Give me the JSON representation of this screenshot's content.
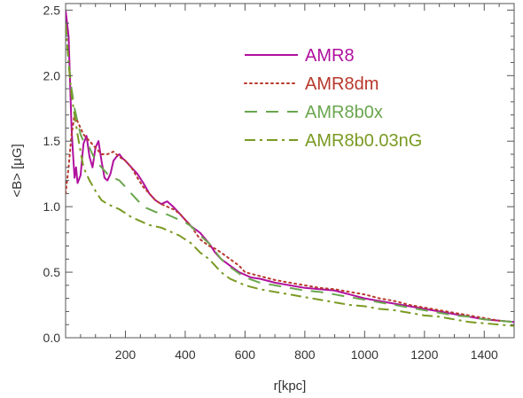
{
  "chart_data": {
    "type": "line",
    "title": "",
    "xlabel": "r[kpc]",
    "ylabel": "<B> [μG]",
    "xlim": [
      0,
      1500
    ],
    "ylim": [
      0,
      2.55
    ],
    "xticks": [
      200,
      400,
      600,
      800,
      1000,
      1200,
      1400
    ],
    "xtick_labels": [
      "200",
      "400",
      "600",
      "800",
      "1000",
      "1200",
      "1400"
    ],
    "yticks": [
      0.0,
      0.5,
      1.0,
      1.5,
      2.0,
      2.5
    ],
    "ytick_labels": [
      "0.0",
      "0.5",
      "1.0",
      "1.5",
      "2.0",
      "2.5"
    ],
    "grid": false,
    "legend_position": "top-right",
    "series": [
      {
        "name": "AMR8",
        "color": "#b0109e",
        "dash": "solid",
        "x": [
          0,
          10,
          20,
          25,
          30,
          35,
          40,
          50,
          60,
          70,
          80,
          90,
          100,
          110,
          120,
          130,
          140,
          150,
          160,
          170,
          180,
          190,
          200,
          220,
          240,
          260,
          280,
          300,
          320,
          340,
          360,
          380,
          400,
          420,
          450,
          480,
          500,
          520,
          550,
          580,
          600,
          620,
          650,
          700,
          750,
          800,
          850,
          900,
          950,
          1000,
          1050,
          1100,
          1150,
          1200,
          1250,
          1300,
          1350,
          1400,
          1450,
          1500
        ],
        "y": [
          2.5,
          2.3,
          1.6,
          1.4,
          1.22,
          1.3,
          1.18,
          1.24,
          1.48,
          1.54,
          1.38,
          1.3,
          1.45,
          1.5,
          1.35,
          1.22,
          1.2,
          1.25,
          1.35,
          1.38,
          1.4,
          1.37,
          1.35,
          1.3,
          1.25,
          1.18,
          1.1,
          1.05,
          1.02,
          1.04,
          1.0,
          0.95,
          0.9,
          0.85,
          0.8,
          0.72,
          0.65,
          0.6,
          0.55,
          0.5,
          0.48,
          0.46,
          0.45,
          0.42,
          0.4,
          0.38,
          0.37,
          0.36,
          0.33,
          0.3,
          0.28,
          0.26,
          0.24,
          0.22,
          0.2,
          0.18,
          0.16,
          0.14,
          0.13,
          0.12
        ]
      },
      {
        "name": "AMR8dm",
        "color": "#b8382c",
        "dash": "dotted",
        "x": [
          0,
          10,
          20,
          30,
          40,
          50,
          60,
          80,
          100,
          120,
          140,
          160,
          180,
          200,
          220,
          240,
          260,
          280,
          300,
          320,
          340,
          360,
          380,
          400,
          420,
          450,
          480,
          500,
          520,
          550,
          580,
          600,
          650,
          700,
          750,
          800,
          850,
          900,
          950,
          1000,
          1050,
          1100,
          1150,
          1200,
          1250,
          1300,
          1350,
          1400,
          1450,
          1500
        ],
        "y": [
          1.1,
          1.3,
          1.55,
          1.7,
          1.65,
          1.6,
          1.55,
          1.5,
          1.45,
          1.4,
          1.4,
          1.42,
          1.38,
          1.35,
          1.3,
          1.22,
          1.15,
          1.1,
          1.05,
          1.02,
          1.0,
          0.98,
          0.95,
          0.9,
          0.85,
          0.75,
          0.7,
          0.68,
          0.65,
          0.6,
          0.55,
          0.5,
          0.47,
          0.44,
          0.42,
          0.4,
          0.38,
          0.37,
          0.35,
          0.33,
          0.3,
          0.28,
          0.25,
          0.23,
          0.21,
          0.19,
          0.17,
          0.15,
          0.13,
          0.12
        ]
      },
      {
        "name": "AMR8b0x",
        "color": "#6aa64e",
        "dash": "dashed",
        "x": [
          0,
          10,
          20,
          30,
          40,
          50,
          60,
          80,
          100,
          120,
          140,
          160,
          180,
          200,
          220,
          240,
          260,
          280,
          300,
          320,
          340,
          360,
          380,
          400,
          420,
          450,
          480,
          500,
          520,
          550,
          580,
          600,
          650,
          700,
          750,
          800,
          850,
          900,
          950,
          1000,
          1050,
          1100,
          1150,
          1200,
          1250,
          1300,
          1350,
          1400,
          1450,
          1500
        ],
        "y": [
          2.4,
          2.1,
          1.9,
          1.75,
          1.65,
          1.55,
          1.5,
          1.45,
          1.35,
          1.3,
          1.25,
          1.22,
          1.2,
          1.15,
          1.1,
          1.05,
          1.0,
          0.98,
          0.96,
          0.95,
          0.94,
          0.92,
          0.9,
          0.88,
          0.85,
          0.78,
          0.72,
          0.66,
          0.6,
          0.54,
          0.49,
          0.46,
          0.42,
          0.4,
          0.38,
          0.36,
          0.35,
          0.33,
          0.31,
          0.29,
          0.27,
          0.25,
          0.23,
          0.21,
          0.19,
          0.17,
          0.16,
          0.14,
          0.13,
          0.12
        ]
      },
      {
        "name": "AMR8b0.03nG",
        "color": "#7a9a22",
        "dash": "dashdot",
        "x": [
          0,
          10,
          20,
          30,
          40,
          50,
          60,
          80,
          100,
          120,
          140,
          160,
          180,
          200,
          220,
          240,
          260,
          280,
          300,
          320,
          340,
          360,
          380,
          400,
          420,
          450,
          480,
          500,
          520,
          550,
          580,
          600,
          650,
          700,
          750,
          800,
          850,
          900,
          950,
          1000,
          1050,
          1100,
          1150,
          1200,
          1250,
          1300,
          1350,
          1400,
          1450,
          1500
        ],
        "y": [
          2.4,
          2.1,
          1.85,
          1.7,
          1.55,
          1.42,
          1.3,
          1.2,
          1.12,
          1.05,
          1.02,
          1.0,
          0.98,
          0.95,
          0.92,
          0.9,
          0.88,
          0.86,
          0.85,
          0.84,
          0.82,
          0.8,
          0.78,
          0.75,
          0.72,
          0.65,
          0.6,
          0.55,
          0.5,
          0.45,
          0.42,
          0.4,
          0.37,
          0.35,
          0.33,
          0.31,
          0.29,
          0.27,
          0.25,
          0.24,
          0.22,
          0.21,
          0.19,
          0.17,
          0.16,
          0.14,
          0.12,
          0.11,
          0.1,
          0.09
        ]
      }
    ]
  }
}
